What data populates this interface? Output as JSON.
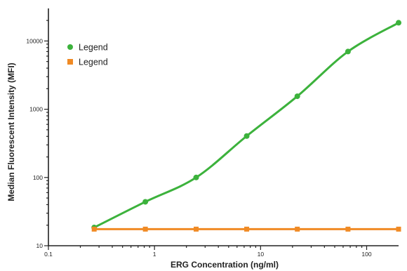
{
  "chart_data": {
    "type": "line",
    "xlabel": "ERG Concentration (ng/ml)",
    "ylabel": "Median Fluorescent Intensity (MFI)",
    "xscale": "log",
    "yscale": "log",
    "xlim": [
      0.1,
      200
    ],
    "ylim": [
      10,
      30000
    ],
    "xticks": [
      0.1,
      1,
      10,
      100
    ],
    "xtick_labels": [
      "0.1",
      "1",
      "10",
      "100"
    ],
    "yticks": [
      10,
      100,
      1000,
      10000
    ],
    "ytick_labels": [
      "10",
      "100",
      "1000",
      "10000"
    ],
    "grid": false,
    "legend_position": "top-left",
    "series": [
      {
        "name": "Legend",
        "color": "#3cb23c",
        "marker": "circle",
        "x": [
          0.27,
          0.82,
          2.47,
          7.4,
          22.2,
          66.7,
          200
        ],
        "y": [
          18.5,
          44,
          100,
          405,
          1550,
          7000,
          18500
        ],
        "fit_curve": true
      },
      {
        "name": "Legend",
        "color": "#f08a24",
        "marker": "square",
        "x": [
          0.27,
          0.82,
          2.47,
          7.4,
          22.2,
          66.7,
          200
        ],
        "y": [
          17.5,
          17.5,
          17.5,
          17.5,
          17.5,
          17.5,
          17.5
        ],
        "fit_curve": false
      }
    ]
  }
}
